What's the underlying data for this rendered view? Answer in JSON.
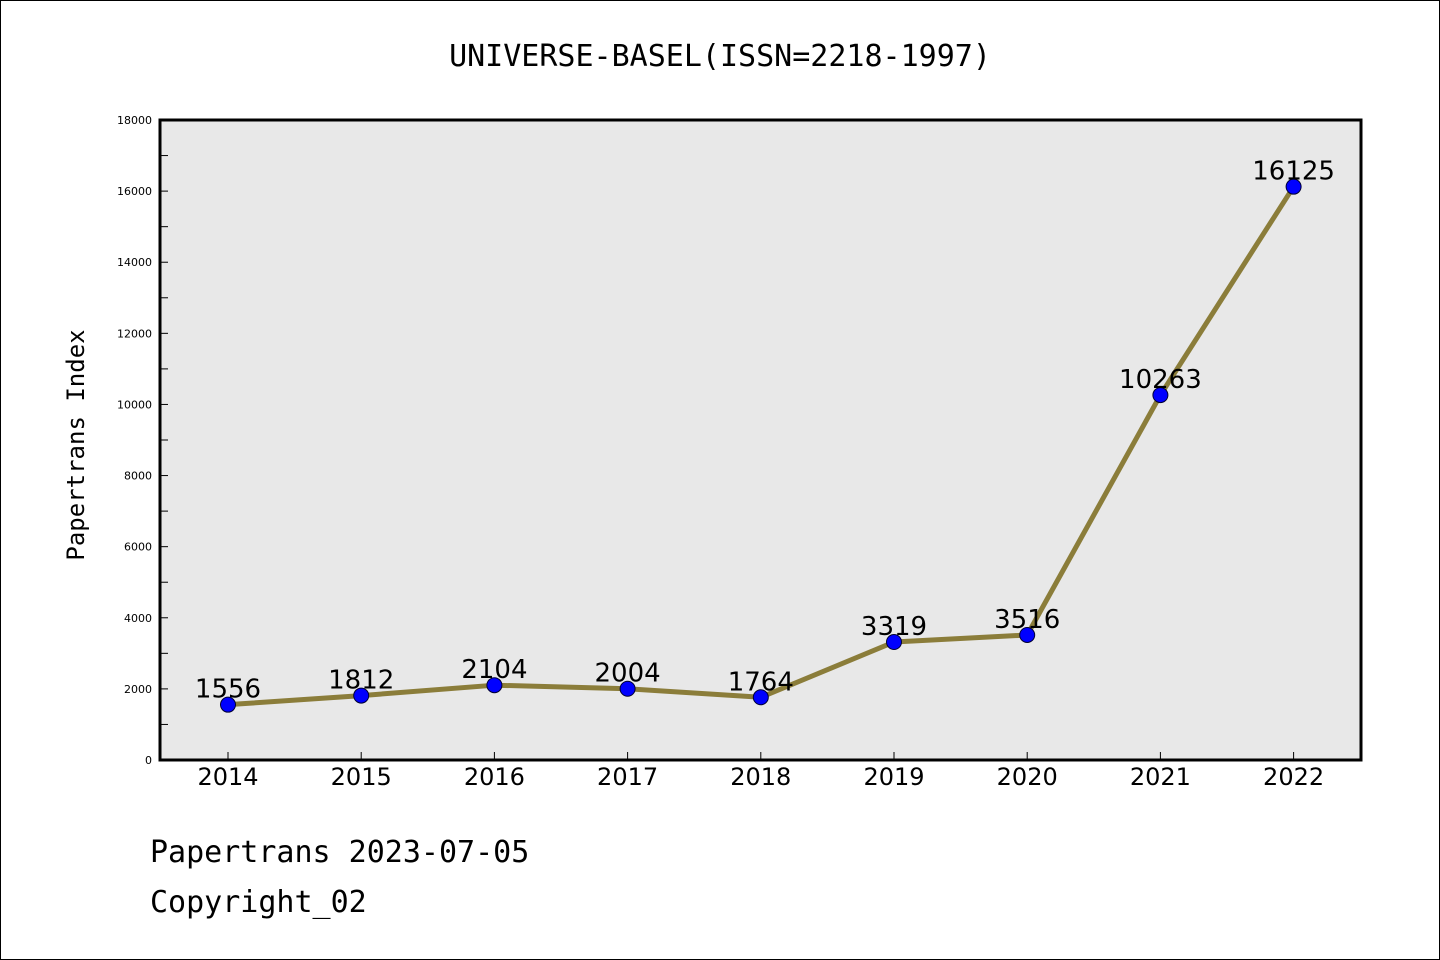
{
  "chart_data": {
    "type": "line",
    "title": "UNIVERSE-BASEL(ISSN=2218-1997)",
    "ylabel": "Papertrans Index",
    "xlabel": "",
    "categories": [
      "2014",
      "2015",
      "2016",
      "2017",
      "2018",
      "2019",
      "2020",
      "2021",
      "2022"
    ],
    "values": [
      1556,
      1812,
      2104,
      2004,
      1764,
      3319,
      3516,
      10263,
      16125
    ],
    "ylim": [
      0,
      18000
    ],
    "yticks": [
      0,
      2000,
      4000,
      6000,
      8000,
      10000,
      12000,
      14000,
      16000,
      18000
    ],
    "grid": false,
    "colors": {
      "line": "#8b7d3a",
      "marker": "#0000ff",
      "plot_background": "#e8e8e8"
    }
  },
  "footer": {
    "line1": "Papertrans 2023-07-05",
    "line2": "Copyright_02"
  }
}
